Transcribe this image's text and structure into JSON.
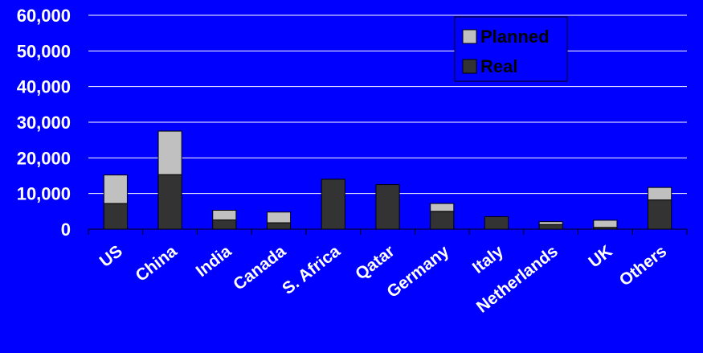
{
  "chart_data": {
    "type": "bar",
    "stacked": true,
    "title": "",
    "xlabel": "",
    "ylabel": "",
    "ylim": [
      0,
      60000
    ],
    "yticks": [
      "60,000",
      "50,000",
      "40,000",
      "30,000",
      "20,000",
      "10,000",
      "0"
    ],
    "ytick_values": [
      60000,
      50000,
      40000,
      30000,
      20000,
      10000,
      0
    ],
    "grid": true,
    "legend_position": "top-right",
    "categories": [
      "US",
      "China",
      "India",
      "Canada",
      "S. Africa",
      "Qatar",
      "Germany",
      "Italy",
      "Netherlands",
      "UK",
      "Others"
    ],
    "series": [
      {
        "name": "Real",
        "color": "#333333",
        "values": [
          7200,
          15300,
          2600,
          1800,
          14000,
          12500,
          5000,
          3500,
          1300,
          500,
          8200
        ]
      },
      {
        "name": "Planned",
        "color": "#c0c0c0",
        "values": [
          8000,
          12200,
          2700,
          3000,
          0,
          0,
          2200,
          0,
          800,
          2000,
          3500
        ]
      }
    ],
    "legend": [
      "Planned",
      "Real"
    ]
  },
  "colors": {
    "background": "#0000ff",
    "gridline": "#ffffff",
    "text": "#ffffff"
  }
}
